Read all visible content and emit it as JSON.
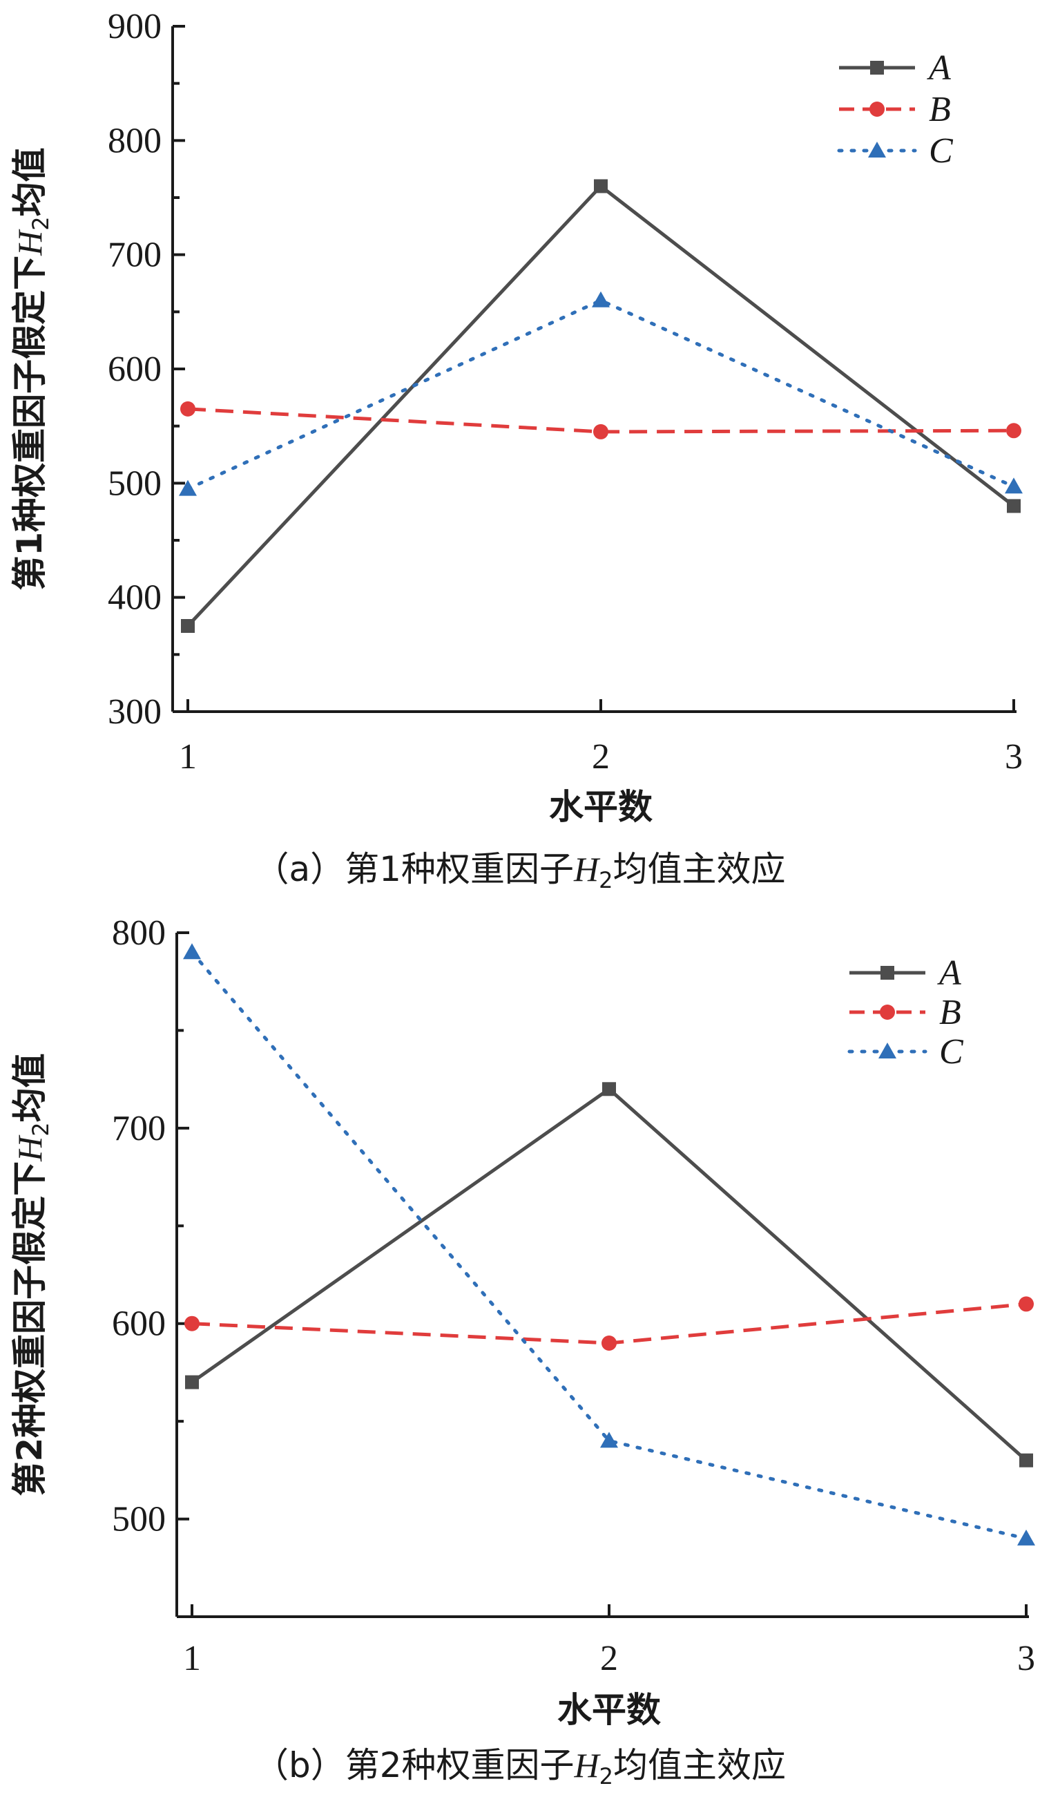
{
  "chart_data": [
    {
      "type": "line",
      "caption": "（a）第1种权重因子H₂均值主效应",
      "caption_parts": {
        "pre": "（a）第1种权重因子",
        "var": "H",
        "sub": "2",
        "post": "均值主效应"
      },
      "xlabel": "水平数",
      "ylabel": "第1种权重因子假定下H₂均值",
      "ylabel_parts": {
        "pre": "第1种权重因子假定下",
        "var": "H",
        "sub": "2",
        "post": "均值"
      },
      "x": [
        1,
        2,
        3
      ],
      "x_ticks": [
        "1",
        "2",
        "3"
      ],
      "ylim": [
        300,
        900
      ],
      "y_ticks": [
        "300",
        "400",
        "500",
        "600",
        "700",
        "800",
        "900"
      ],
      "legend_position": "top-right",
      "series": [
        {
          "name": "A",
          "values": [
            375,
            760,
            480
          ],
          "color": "#4d4d4d",
          "marker": "square",
          "dash": "solid"
        },
        {
          "name": "B",
          "values": [
            565,
            545,
            546
          ],
          "color": "#e03c3c",
          "marker": "circle",
          "dash": "dashed"
        },
        {
          "name": "C",
          "values": [
            495,
            660,
            497
          ],
          "color": "#2f6fb8",
          "marker": "triangle",
          "dash": "dotted"
        }
      ]
    },
    {
      "type": "line",
      "caption": "（b）第2种权重因子H₂均值主效应",
      "caption_parts": {
        "pre": "（b）第2种权重因子",
        "var": "H",
        "sub": "2",
        "post": "均值主效应"
      },
      "xlabel": "水平数",
      "ylabel": "第2种权重因子假定下H₂均值",
      "ylabel_parts": {
        "pre": "第2种权重因子假定下",
        "var": "H",
        "sub": "2",
        "post": "均值"
      },
      "x": [
        1,
        2,
        3
      ],
      "x_ticks": [
        "1",
        "2",
        "3"
      ],
      "ylim": [
        450,
        800
      ],
      "y_ticks": [
        "500",
        "600",
        "700",
        "800"
      ],
      "legend_position": "top-right",
      "series": [
        {
          "name": "A",
          "values": [
            570,
            720,
            530
          ],
          "color": "#4d4d4d",
          "marker": "square",
          "dash": "solid"
        },
        {
          "name": "B",
          "values": [
            600,
            590,
            610
          ],
          "color": "#e03c3c",
          "marker": "circle",
          "dash": "dashed"
        },
        {
          "name": "C",
          "values": [
            790,
            540,
            490
          ],
          "color": "#2f6fb8",
          "marker": "triangle",
          "dash": "dotted"
        }
      ]
    }
  ]
}
